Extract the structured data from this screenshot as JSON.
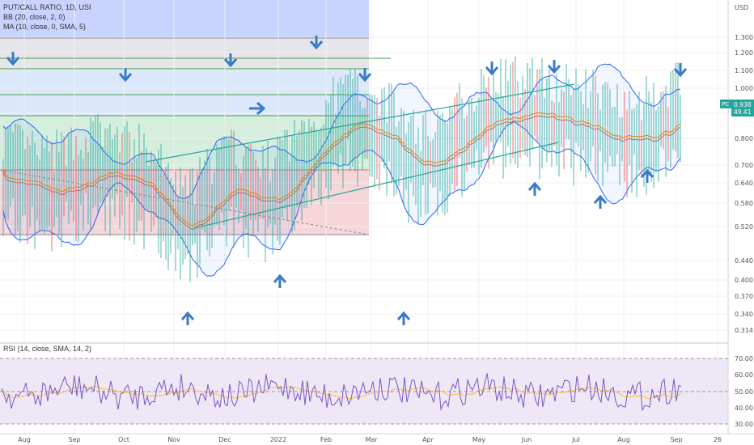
{
  "header": {
    "symbol_line": "PUT/CALL RATIO, 1D, USI",
    "bb_line": "BB (20, close, 2, 0)",
    "ma_line": "MA (10, close, 0, SMA, 5)",
    "rsi_line": "RSI (14, close, SMA, 14, 2)"
  },
  "price_axis": {
    "currency": "USD",
    "ticks": [
      "1.300",
      "1.200",
      "1.100",
      "1.000",
      "0.900",
      "0.800",
      "0.700",
      "0.640",
      "0.580",
      "0.520",
      "0.440",
      "0.400",
      "0.370",
      "0.340",
      "0.314"
    ],
    "last_label": "PC",
    "last_value": "0.938",
    "last_sub": "49.41"
  },
  "rsi_axis": {
    "ticks": [
      "70.00",
      "60.00",
      "50.00",
      "40.00",
      "30.00"
    ]
  },
  "time_axis": {
    "labels": [
      "Aug",
      "Sep",
      "Oct",
      "Nov",
      "Dec",
      "2022",
      "Feb",
      "Mar",
      "Apr",
      "May",
      "Jun",
      "Jul",
      "Aug",
      "Sep",
      "26"
    ]
  },
  "colors": {
    "up": "#26a69a",
    "down": "#ef5350",
    "bb": "#2962ff",
    "ma": "#f57c00",
    "rsi": "#7e57c2",
    "arrow": "#3a7bc8"
  },
  "arrows": {
    "down_count": 7,
    "up_count": 7
  },
  "chart_data": {
    "type": "line",
    "title": "PUT/CALL RATIO, 1D, USI",
    "xlabel": "",
    "ylabel": "",
    "y_scale": "log",
    "ylim": [
      0.3,
      1.45
    ],
    "x": [
      "Aug",
      "Sep",
      "Oct",
      "Nov",
      "Dec",
      "2022",
      "Feb",
      "Mar",
      "Apr",
      "May",
      "Jun",
      "Jul",
      "Aug",
      "Sep"
    ],
    "series": [
      {
        "name": "PC",
        "values": [
          0.62,
          0.66,
          0.72,
          0.52,
          0.62,
          0.58,
          0.82,
          0.86,
          0.76,
          0.92,
          0.96,
          0.93,
          0.88,
          0.938
        ]
      },
      {
        "name": "BB",
        "values": [
          0.68,
          0.7,
          0.78,
          0.74,
          0.88,
          0.82,
          1.05,
          0.98,
          0.92,
          1.05,
          1.08,
          1.05,
          1.02,
          1.08
        ]
      },
      {
        "name": "MA",
        "values": [
          0.67,
          0.68,
          0.7,
          0.6,
          0.64,
          0.62,
          0.8,
          0.86,
          0.8,
          0.86,
          0.93,
          0.92,
          0.87,
          0.88
        ]
      }
    ],
    "rsi": {
      "name": "RSI",
      "ylim": [
        30,
        70
      ],
      "last": 49.41
    },
    "grid": true,
    "legend": "top-left"
  }
}
